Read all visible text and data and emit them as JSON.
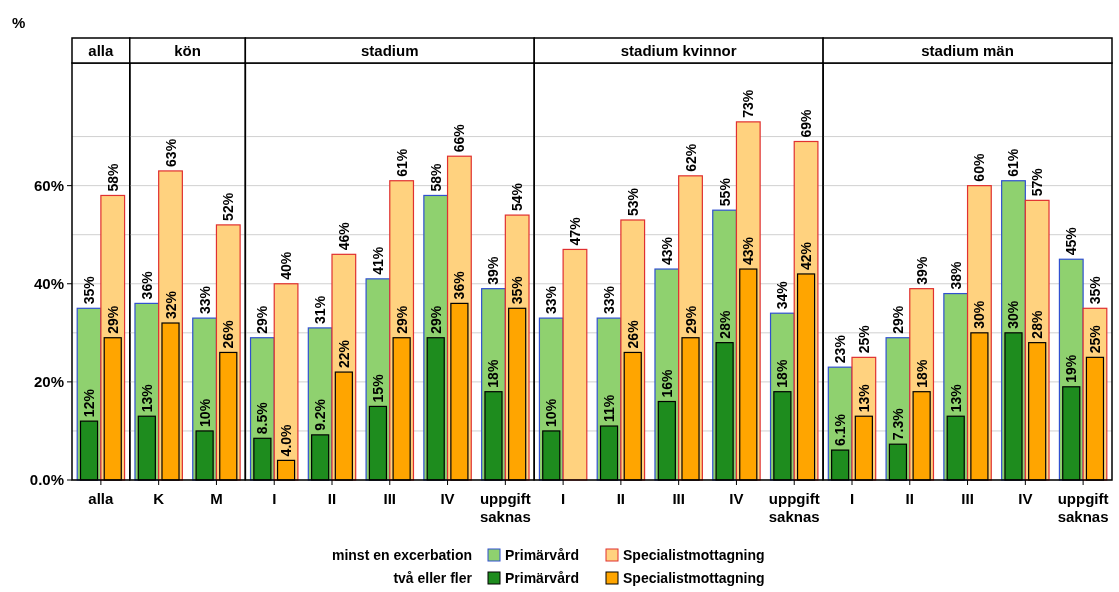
{
  "chart_data": [
    {
      "type": "bar",
      "title": "alla",
      "ylabel": "%",
      "categories": [
        "alla"
      ],
      "ylim": [
        0,
        85
      ],
      "yticks": [
        {
          "value": 0,
          "label": "0.0%"
        },
        {
          "value": 10,
          "label": null
        },
        {
          "value": 20,
          "label": "20%"
        },
        {
          "value": 30,
          "label": null
        },
        {
          "value": 40,
          "label": "40%"
        },
        {
          "value": 50,
          "label": null
        },
        {
          "value": 60,
          "label": "60%"
        },
        {
          "value": 70,
          "label": null
        }
      ],
      "grid": "y",
      "legend": "bottom",
      "annotations": [
        "minst en excerbation",
        "två eller fler"
      ],
      "series": [
        {
          "name": "Primärvård",
          "color": "#8fd16f",
          "values": [
            35
          ],
          "value_labels": [
            "35%"
          ]
        },
        {
          "name": "Specialistmottagning",
          "color": "#ffd27f",
          "values": [
            58
          ],
          "value_labels": [
            "58%"
          ]
        },
        {
          "name": "Primärvård",
          "color": "#1e8c1e",
          "values": [
            12
          ],
          "value_labels": [
            "12%"
          ]
        },
        {
          "name": "Specialistmottagning",
          "color": "#ffa500",
          "values": [
            29
          ],
          "value_labels": [
            "29%"
          ]
        }
      ]
    },
    {
      "type": "bar",
      "title": "kön",
      "categories": [
        "K",
        "M"
      ],
      "ylim": [
        0,
        85
      ],
      "yticks": [
        {
          "value": 0,
          "label": null
        },
        {
          "value": 10,
          "label": null
        },
        {
          "value": 20,
          "label": null
        },
        {
          "value": 30,
          "label": null
        },
        {
          "value": 40,
          "label": null
        },
        {
          "value": 50,
          "label": null
        },
        {
          "value": 60,
          "label": null
        },
        {
          "value": 70,
          "label": null
        }
      ],
      "grid": "y",
      "tick_labels": "x",
      "series": [
        {
          "color": "#8fd16f",
          "values": [
            36,
            33
          ],
          "value_labels": [
            "36%",
            "33%"
          ]
        },
        {
          "color": "#ffd27f",
          "values": [
            63,
            52
          ],
          "value_labels": [
            "63%",
            "52%"
          ]
        },
        {
          "color": "#1e8c1e",
          "values": [
            13,
            10
          ],
          "value_labels": [
            "13%",
            "10%"
          ]
        },
        {
          "color": "#ffa500",
          "values": [
            32,
            26
          ],
          "value_labels": [
            "32%",
            "26%"
          ]
        }
      ]
    },
    {
      "type": "bar",
      "title": "stadium",
      "categories": [
        "I",
        "II",
        "III",
        "IV",
        "uppgift saknas"
      ],
      "ylim": [
        0,
        85
      ],
      "yticks": [
        {
          "value": 0,
          "label": null
        },
        {
          "value": 10,
          "label": null
        },
        {
          "value": 20,
          "label": null
        },
        {
          "value": 30,
          "label": null
        },
        {
          "value": 40,
          "label": null
        },
        {
          "value": 50,
          "label": null
        },
        {
          "value": 60,
          "label": null
        },
        {
          "value": 70,
          "label": null
        }
      ],
      "grid": "y",
      "tick_labels": "x",
      "series": [
        {
          "color": "#8fd16f",
          "values": [
            29,
            31,
            41,
            58,
            39
          ],
          "value_labels": [
            "29%",
            "31%",
            "41%",
            "58%",
            "39%"
          ]
        },
        {
          "color": "#ffd27f",
          "values": [
            40,
            46,
            61,
            66,
            54
          ],
          "value_labels": [
            "40%",
            "46%",
            "61%",
            "66%",
            "54%"
          ]
        },
        {
          "color": "#1e8c1e",
          "values": [
            8.5,
            9.2,
            15,
            29,
            18
          ],
          "value_labels": [
            "8.5%",
            "9.2%",
            "15%",
            "29%",
            "18%"
          ]
        },
        {
          "color": "#ffa500",
          "values": [
            4.0,
            22,
            29,
            36,
            35
          ],
          "value_labels": [
            "4.0%",
            "22%",
            "29%",
            "36%",
            "35%"
          ]
        }
      ]
    },
    {
      "type": "bar",
      "title": "stadium kvinnor",
      "categories": [
        "I",
        "II",
        "III",
        "IV",
        "uppgift saknas"
      ],
      "ylim": [
        0,
        85
      ],
      "yticks": [
        {
          "value": 0,
          "label": null
        },
        {
          "value": 10,
          "label": null
        },
        {
          "value": 20,
          "label": null
        },
        {
          "value": 30,
          "label": null
        },
        {
          "value": 40,
          "label": null
        },
        {
          "value": 50,
          "label": null
        },
        {
          "value": 60,
          "label": null
        },
        {
          "value": 70,
          "label": null
        }
      ],
      "grid": "y",
      "tick_labels": "x",
      "series": [
        {
          "color": "#8fd16f",
          "values": [
            33,
            33,
            43,
            55,
            34
          ],
          "value_labels": [
            "33%",
            "33%",
            "43%",
            "55%",
            "34%"
          ]
        },
        {
          "color": "#ffd27f",
          "values": [
            47,
            53,
            62,
            73,
            69
          ],
          "value_labels": [
            "47%",
            "53%",
            "62%",
            "73%",
            "69%"
          ]
        },
        {
          "color": "#1e8c1e",
          "values": [
            10,
            11,
            16,
            28,
            18
          ],
          "value_labels": [
            "10%",
            "11%",
            "16%",
            "28%",
            "18%"
          ]
        },
        {
          "color": "#ffa500",
          "values": [
            null,
            26,
            29,
            43,
            42
          ],
          "value_labels": [
            null,
            "26%",
            "29%",
            "43%",
            "42%"
          ]
        }
      ]
    },
    {
      "type": "bar",
      "title": "stadium män",
      "categories": [
        "I",
        "II",
        "III",
        "IV",
        "uppgift saknas"
      ],
      "ylim": [
        0,
        85
      ],
      "yticks": [
        {
          "value": 0,
          "label": null
        },
        {
          "value": 10,
          "label": null
        },
        {
          "value": 20,
          "label": null
        },
        {
          "value": 30,
          "label": null
        },
        {
          "value": 40,
          "label": null
        },
        {
          "value": 50,
          "label": null
        },
        {
          "value": 60,
          "label": null
        },
        {
          "value": 70,
          "label": null
        }
      ],
      "grid": "y",
      "tick_labels": "x",
      "series": [
        {
          "color": "#8fd16f",
          "values": [
            23,
            29,
            38,
            61,
            45
          ],
          "value_labels": [
            "23%",
            "29%",
            "38%",
            "61%",
            "45%"
          ]
        },
        {
          "color": "#ffd27f",
          "values": [
            25,
            39,
            60,
            57,
            35
          ],
          "value_labels": [
            "25%",
            "39%",
            "60%",
            "57%",
            "35%"
          ]
        },
        {
          "color": "#1e8c1e",
          "values": [
            6.1,
            7.3,
            13,
            30,
            19
          ],
          "value_labels": [
            "6.1%",
            "7.3%",
            "13%",
            "30%",
            "19%"
          ]
        },
        {
          "color": "#ffa500",
          "values": [
            13,
            18,
            30,
            28,
            25
          ],
          "value_labels": [
            "13%",
            "18%",
            "30%",
            "28%",
            "25%"
          ]
        }
      ]
    }
  ]
}
